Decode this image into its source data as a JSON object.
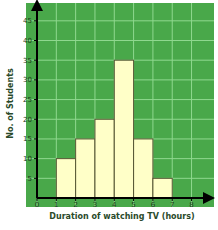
{
  "chart_data": {
    "type": "histogram",
    "xlabel": "Duration of watching TV (hours)",
    "ylabel": "No. of Students",
    "bins": [
      1,
      2,
      3,
      4,
      5,
      6,
      7
    ],
    "values": [
      10,
      15,
      20,
      35,
      15,
      5
    ],
    "color": "#ffffc8",
    "xlim": [
      0,
      8.8
    ],
    "xticks": [
      0,
      1,
      2,
      3,
      4,
      5,
      6,
      7,
      8
    ],
    "ylim": [
      0,
      48
    ],
    "yticks": [
      5,
      10,
      15,
      20,
      25,
      30,
      35,
      40,
      45
    ],
    "grid": true
  }
}
